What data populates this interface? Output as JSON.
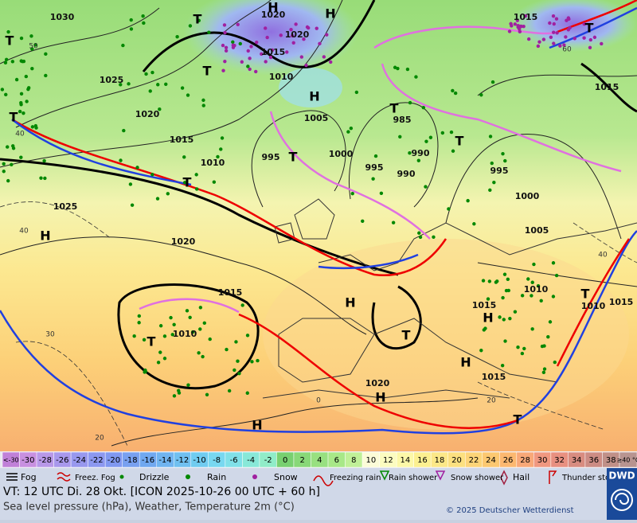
{
  "map": {
    "pressure_labels": [
      "1030",
      "1020",
      "1020",
      "1015",
      "1015",
      "1025",
      "1010",
      "1020",
      "1015",
      "1005",
      "985",
      "1010",
      "995",
      "1000",
      "995",
      "990",
      "990",
      "995",
      "1000",
      "1005",
      "1015",
      "1025",
      "1020",
      "1015",
      "1010",
      "1015",
      "1010",
      "1010",
      "1015",
      "1020",
      "1015"
    ],
    "centers": [
      "T",
      "H",
      "H",
      "T",
      "T",
      "H",
      "T",
      "T",
      "T",
      "T",
      "T",
      "H",
      "H",
      "T",
      "T",
      "H",
      "H",
      "H",
      "H",
      "T",
      "T",
      "T"
    ],
    "temperature_labels": [
      "50",
      "40",
      "40",
      "30",
      "20",
      "40",
      "20",
      "0",
      "60"
    ]
  },
  "color_scale": {
    "cells": [
      {
        "label": "<-30",
        "color": "#c080d8"
      },
      {
        "label": "-30",
        "color": "#c890e0"
      },
      {
        "label": "-28",
        "color": "#b898e8"
      },
      {
        "label": "-26",
        "color": "#a898ec"
      },
      {
        "label": "-24",
        "color": "#9898ee"
      },
      {
        "label": "-22",
        "color": "#8c98f0"
      },
      {
        "label": "-20",
        "color": "#8098f0"
      },
      {
        "label": "-18",
        "color": "#78a0f0"
      },
      {
        "label": "-16",
        "color": "#70a8f0"
      },
      {
        "label": "-14",
        "color": "#70b4f0"
      },
      {
        "label": "-12",
        "color": "#70c0f0"
      },
      {
        "label": "-10",
        "color": "#70ccf0"
      },
      {
        "label": "-8",
        "color": "#78d8f0"
      },
      {
        "label": "-6",
        "color": "#80e0e8"
      },
      {
        "label": "-4",
        "color": "#88e8d8"
      },
      {
        "label": "-2",
        "color": "#90ecc8"
      },
      {
        "label": "0",
        "color": "#78d070"
      },
      {
        "label": "2",
        "color": "#88d878"
      },
      {
        "label": "4",
        "color": "#98e080"
      },
      {
        "label": "6",
        "color": "#a8e888"
      },
      {
        "label": "8",
        "color": "#c0f098"
      },
      {
        "label": "10",
        "color": "#fcfcd8"
      },
      {
        "label": "12",
        "color": "#fcfcc0"
      },
      {
        "label": "14",
        "color": "#fcf8a8"
      },
      {
        "label": "16",
        "color": "#fcf090"
      },
      {
        "label": "18",
        "color": "#fce888"
      },
      {
        "label": "20",
        "color": "#fce080"
      },
      {
        "label": "22",
        "color": "#fcd478"
      },
      {
        "label": "24",
        "color": "#fcc870"
      },
      {
        "label": "26",
        "color": "#fcb870"
      },
      {
        "label": "28",
        "color": "#f8a878"
      },
      {
        "label": "30",
        "color": "#f09880"
      },
      {
        "label": "32",
        "color": "#e89080"
      },
      {
        "label": "34",
        "color": "#d88c80"
      },
      {
        "label": "36",
        "color": "#cc8c84"
      },
      {
        "label": "38",
        "color": "#c09088"
      },
      {
        "label": "≥40 °C",
        "color": "#b89490"
      }
    ]
  },
  "legend": [
    "Fog",
    "Freez. Fog",
    "Drizzle",
    "Rain",
    "Snow",
    "Freezing rain",
    "Rain shower",
    "Snow shower",
    "Hail",
    "Thunder storm"
  ],
  "footer": {
    "valid_time": "VT: 12 UTC Di.  28 Okt. [ICON 2025-10-26  00 UTC + 60 h]",
    "description": "Sea level pressure (hPa), Weather, Temperature 2m (°C)",
    "copyright": "© 2025 Deutscher Wetterdienst",
    "logo": "DWD"
  }
}
